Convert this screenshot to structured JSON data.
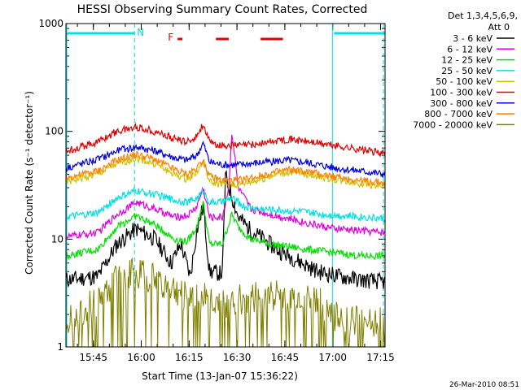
{
  "chart_data": {
    "type": "line",
    "title": "HESSI Observing Summary Count Rates, Corrected",
    "xlabel": "Start Time (13-Jan-07 15:36:22)",
    "ylabel": "Corrected Count Rate (s⁻¹ detector⁻¹)",
    "y_scale": "log",
    "ylim": [
      1,
      1000
    ],
    "y_ticks": [
      {
        "value": 1,
        "label": "1"
      },
      {
        "value": 10,
        "label": "10"
      },
      {
        "value": 100,
        "label": "100"
      },
      {
        "value": 1000,
        "label": "1000"
      }
    ],
    "xlim_minutes": [
      0,
      100
    ],
    "x_ticks": [
      {
        "minute": 8.6,
        "label": "15:45"
      },
      {
        "minute": 23.6,
        "label": "16:00"
      },
      {
        "minute": 38.6,
        "label": "16:15"
      },
      {
        "minute": 53.6,
        "label": "16:30"
      },
      {
        "minute": 68.6,
        "label": "16:45"
      },
      {
        "minute": 83.6,
        "label": "17:00"
      },
      {
        "minute": 98.6,
        "label": "17:15"
      }
    ],
    "legend": {
      "header": [
        "Det 1,3,4,5,6,9,",
        "Att 0"
      ],
      "position": "right"
    },
    "series": [
      {
        "name": "3 - 6 keV",
        "color": "#000000",
        "x": [
          0,
          10,
          16,
          22,
          28,
          33,
          36,
          39,
          41,
          43,
          45,
          49,
          50,
          52,
          54,
          58,
          62,
          66,
          70,
          74,
          79,
          86,
          92,
          100
        ],
        "y": [
          4.2,
          4.5,
          9,
          12.5,
          10,
          6,
          9,
          4.5,
          12,
          20,
          5,
          4.8,
          38,
          25,
          16,
          12,
          10,
          8,
          7,
          6,
          5,
          4.5,
          4.2,
          4.0
        ]
      },
      {
        "name": "6 - 12 keV",
        "color": "#e000e0",
        "x": [
          0,
          10,
          16,
          22,
          28,
          34,
          38,
          41,
          43,
          45,
          49,
          51,
          52,
          54,
          58,
          64,
          70,
          76,
          84,
          92,
          100
        ],
        "y": [
          10.5,
          11.5,
          17,
          22,
          19,
          16,
          16.5,
          20,
          30,
          16,
          16,
          30,
          100,
          30,
          19,
          17,
          15.5,
          14,
          12.5,
          12,
          11.5
        ]
      },
      {
        "name": "12 - 25 keV",
        "color": "#00e000",
        "x": [
          0,
          10,
          16,
          22,
          28,
          34,
          38,
          41,
          43,
          45,
          49,
          52,
          54,
          58,
          64,
          70,
          76,
          84,
          92,
          100
        ],
        "y": [
          7,
          8,
          13,
          16.5,
          13.5,
          10,
          9.5,
          13,
          22,
          9,
          9,
          17,
          13,
          10,
          9,
          8.5,
          8,
          7.5,
          7,
          7
        ]
      },
      {
        "name": "25 - 50 keV",
        "color": "#00e0e0",
        "x": [
          0,
          10,
          16,
          22,
          28,
          34,
          38,
          41,
          43,
          45,
          49,
          52,
          56,
          62,
          68,
          74,
          80,
          88,
          100
        ],
        "y": [
          16,
          17.5,
          24,
          28,
          26,
          23,
          22,
          24,
          28,
          22,
          22,
          24,
          20,
          19,
          18.5,
          18,
          17,
          16.5,
          15.5
        ]
      },
      {
        "name": "50 - 100 keV",
        "color": "#d4c000",
        "x": [
          0,
          10,
          16,
          22,
          28,
          34,
          38,
          41,
          43,
          45,
          49,
          54,
          60,
          66,
          70,
          76,
          84,
          92,
          100
        ],
        "y": [
          34,
          40,
          50,
          56,
          50,
          40,
          36,
          42,
          52,
          34,
          32,
          32,
          35,
          40,
          42,
          40,
          36,
          33,
          31
        ]
      },
      {
        "name": "100 - 300 keV",
        "color": "#e00000",
        "x": [
          0,
          10,
          16,
          22,
          28,
          34,
          38,
          41,
          43,
          45,
          49,
          54,
          60,
          66,
          70,
          76,
          84,
          92,
          100
        ],
        "y": [
          66,
          80,
          100,
          110,
          100,
          85,
          80,
          90,
          118,
          78,
          74,
          74,
          76,
          82,
          85,
          80,
          74,
          68,
          62
        ]
      },
      {
        "name": "300 - 800 keV",
        "color": "#0000e0",
        "x": [
          0,
          10,
          16,
          22,
          28,
          34,
          38,
          41,
          43,
          45,
          49,
          54,
          60,
          66,
          70,
          76,
          84,
          92,
          100
        ],
        "y": [
          46,
          55,
          66,
          72,
          66,
          57,
          54,
          60,
          78,
          52,
          49,
          49,
          51,
          53,
          54,
          51,
          46,
          43,
          40
        ]
      },
      {
        "name": "800 - 7000 keV",
        "color": "#ff8000",
        "x": [
          0,
          10,
          16,
          22,
          28,
          34,
          38,
          41,
          43,
          45,
          49,
          54,
          60,
          66,
          70,
          76,
          84,
          92,
          100
        ],
        "y": [
          37,
          43,
          54,
          61,
          55,
          44,
          40,
          46,
          56,
          38,
          35,
          35,
          38,
          42,
          44,
          42,
          38,
          35,
          33
        ]
      },
      {
        "name": "7000 - 20000 keV",
        "color": "#808000",
        "x": [
          0,
          10,
          16,
          22,
          28,
          34,
          38,
          42,
          46,
          50,
          56,
          64,
          72,
          80,
          84,
          90,
          100
        ],
        "y": [
          1.8,
          2.6,
          4.2,
          5.0,
          4.2,
          3.2,
          3.0,
          3.0,
          2.6,
          2.4,
          2.8,
          3.0,
          2.8,
          2.6,
          2.0,
          1.7,
          1.8
        ]
      }
    ],
    "observing_flags": {
      "night_label": "N",
      "flare_label": "F",
      "night_intervals_minutes": [
        [
          0,
          21.5
        ],
        [
          83.5,
          100
        ]
      ],
      "flare_intervals_minutes": [
        [
          35,
          36.5
        ],
        [
          47,
          51
        ],
        [
          61,
          68
        ]
      ],
      "night_color": "#00e0e0",
      "flare_color": "#e00000"
    },
    "boundary_lines_minutes": {
      "dashed": [
        21.5,
        99.5
      ],
      "solid": [
        0,
        83.5
      ]
    }
  },
  "footer": {
    "timestamp": "26-Mar-2010 08:51"
  }
}
